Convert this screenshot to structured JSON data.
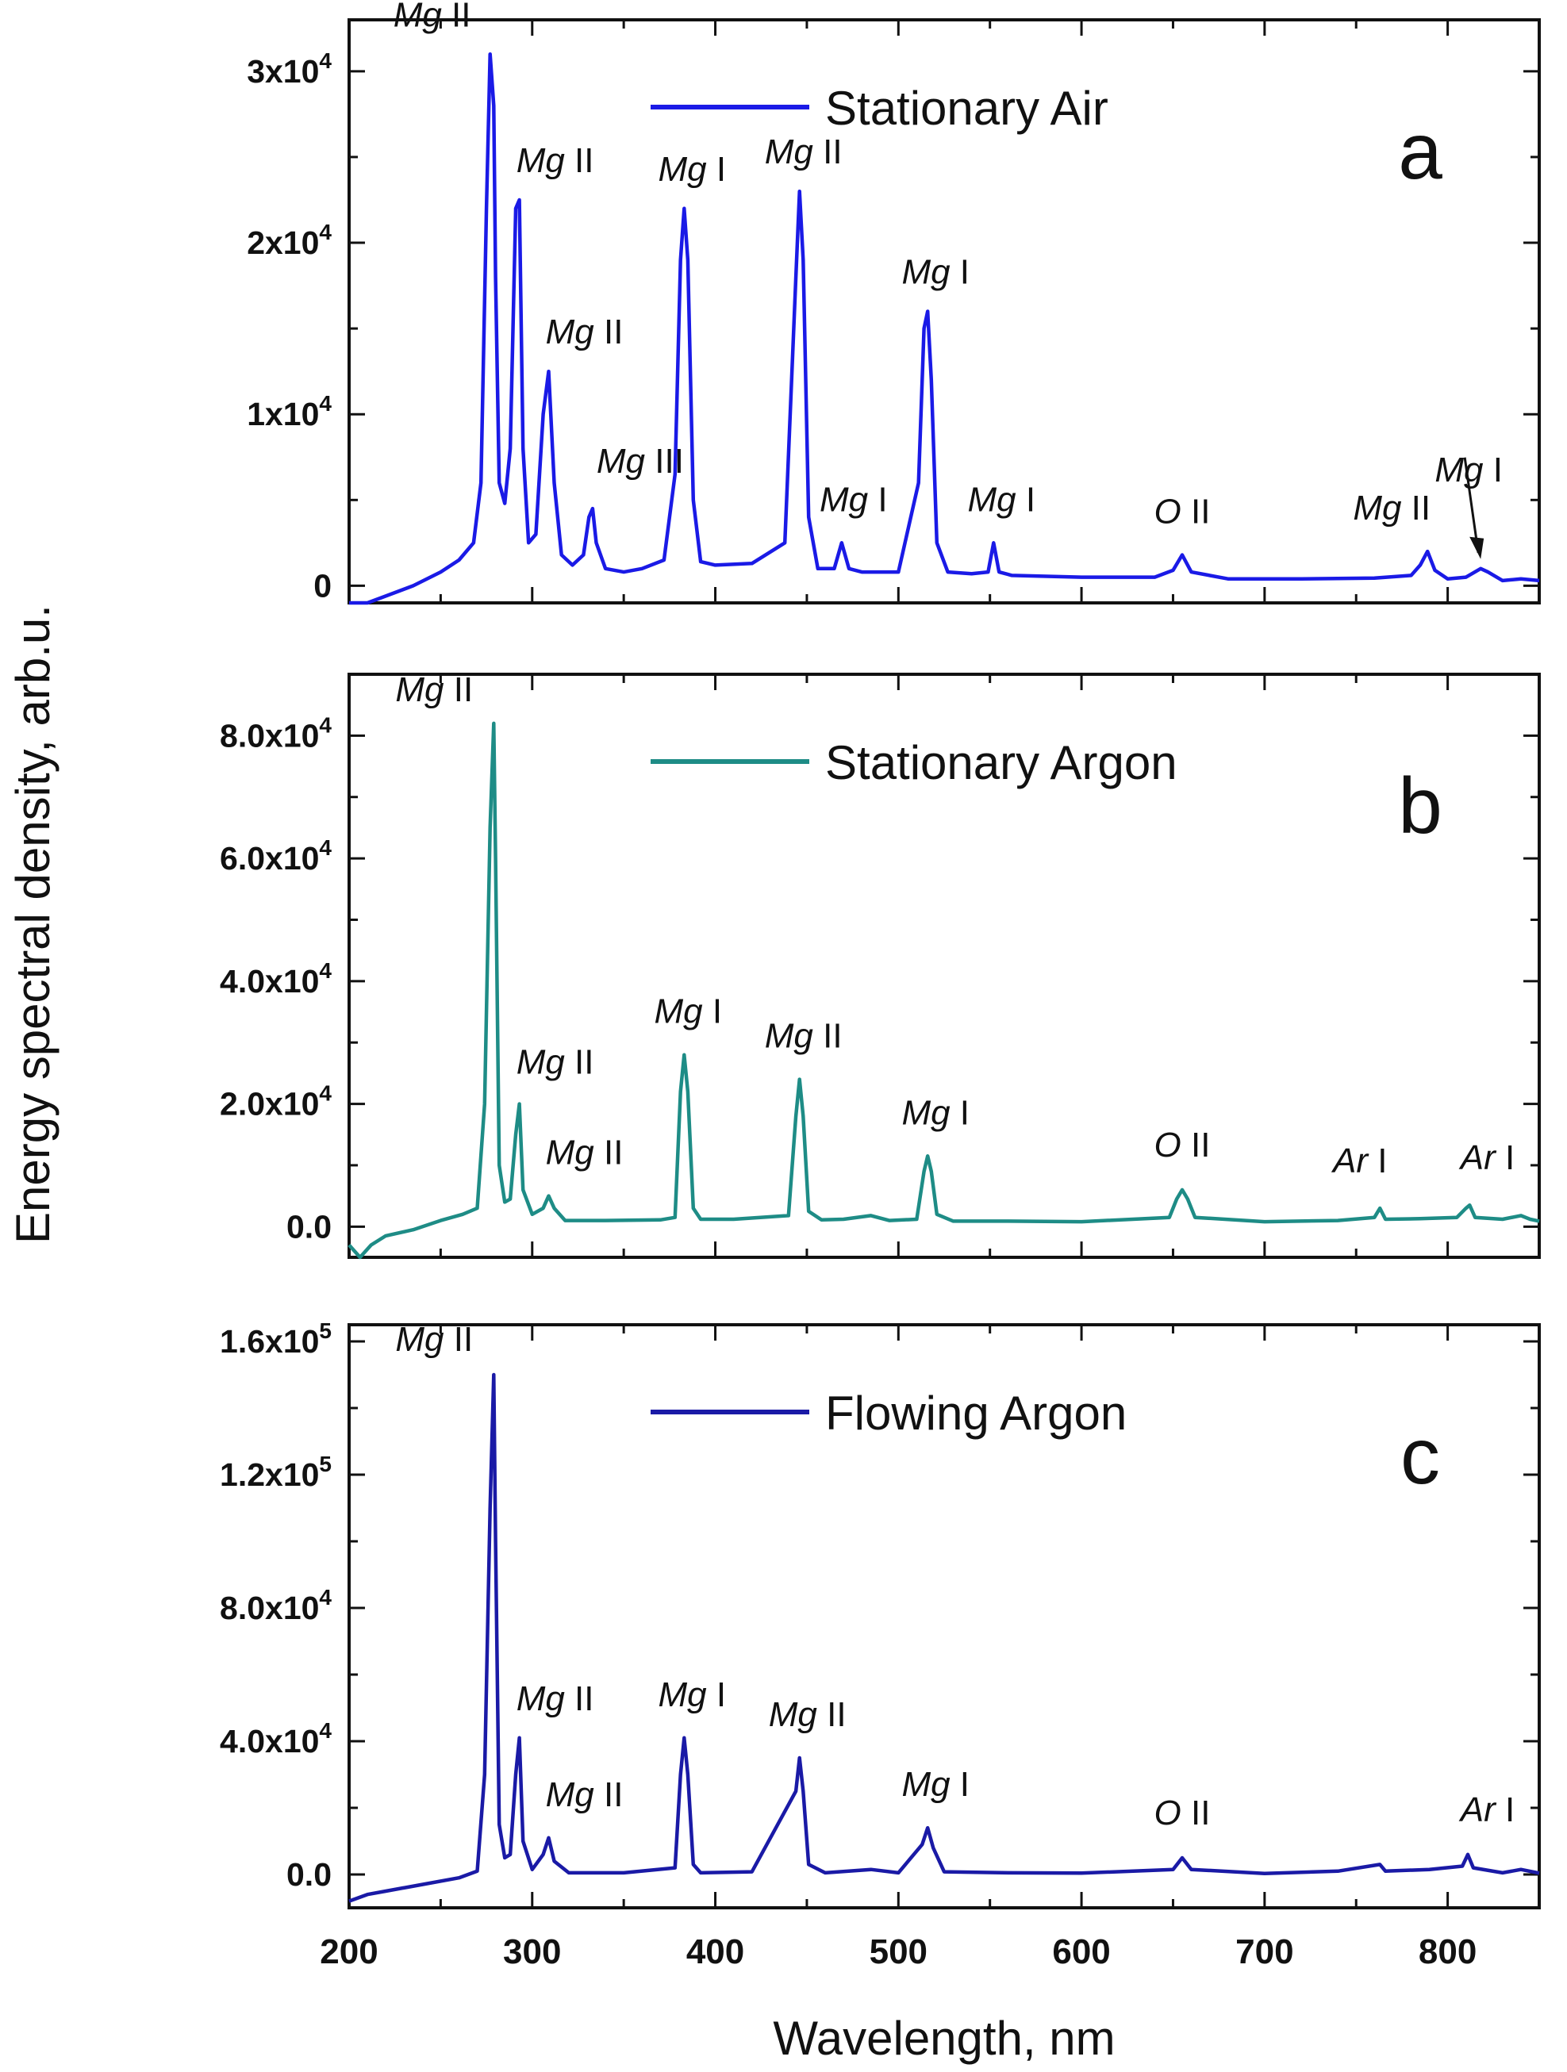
{
  "chart_data": [
    {
      "type": "line",
      "panel_label": "a",
      "series": [
        {
          "name": "Stationary Air",
          "color": "#1a1ae6"
        }
      ],
      "x": [
        200,
        210,
        220,
        235,
        250,
        260,
        268,
        272,
        275,
        277,
        279,
        280,
        282,
        285,
        288,
        291,
        293,
        295,
        298,
        302,
        306,
        309,
        312,
        316,
        322,
        328,
        331,
        333,
        335,
        340,
        350,
        360,
        372,
        378,
        381,
        383,
        385,
        388,
        392,
        400,
        420,
        438,
        444,
        446,
        448,
        451,
        456,
        465,
        469,
        473,
        480,
        500,
        511,
        514,
        516,
        518,
        521,
        527,
        540,
        549,
        552,
        555,
        562,
        600,
        640,
        650,
        655,
        660,
        680,
        720,
        760,
        780,
        785,
        789,
        793,
        800,
        810,
        818,
        822,
        830,
        840,
        850
      ],
      "values": [
        -1000,
        -1000,
        -600,
        0,
        800,
        1500,
        2500,
        6000,
        22000,
        31000,
        28000,
        18000,
        6000,
        4800,
        8000,
        22000,
        22500,
        8000,
        2500,
        3000,
        10000,
        12500,
        6000,
        1800,
        1200,
        1800,
        4000,
        4500,
        2500,
        1000,
        800,
        1000,
        1500,
        6500,
        19000,
        22000,
        19000,
        5000,
        1400,
        1200,
        1300,
        2500,
        18000,
        23000,
        19000,
        4000,
        1000,
        1000,
        2500,
        1000,
        800,
        800,
        6000,
        15000,
        16000,
        12000,
        2500,
        800,
        700,
        800,
        2500,
        800,
        600,
        500,
        500,
        900,
        1800,
        800,
        400,
        400,
        450,
        600,
        1200,
        2000,
        900,
        400,
        500,
        1000,
        800,
        300,
        400,
        300
      ],
      "xlim": [
        200,
        850
      ],
      "ylim": [
        -1000,
        33000
      ],
      "yticks": [
        0,
        10000,
        20000,
        30000
      ],
      "ytick_labels": [
        "0",
        "1x10",
        "2x10",
        "3x10"
      ],
      "ytick_exponents": [
        "",
        "4",
        "4",
        "4"
      ],
      "annotations": [
        {
          "italic": "Mg",
          "normal": " II",
          "x": 280,
          "y": 31000
        },
        {
          "italic": "Mg",
          "normal": " II",
          "x": 293,
          "y": 22500
        },
        {
          "italic": "Mg",
          "normal": " II",
          "x": 309,
          "y": 12500
        },
        {
          "italic": "Mg",
          "normal": " III",
          "x": 333,
          "y": 4500
        },
        {
          "italic": "Mg",
          "normal": " I",
          "x": 383,
          "y": 22000
        },
        {
          "italic": "Mg",
          "normal": " II",
          "x": 446,
          "y": 23000
        },
        {
          "italic": "Mg",
          "normal": " I",
          "x": 469,
          "y": 2500
        },
        {
          "italic": "Mg",
          "normal": " I",
          "x": 516,
          "y": 16000
        },
        {
          "italic": "Mg",
          "normal": " I",
          "x": 552,
          "y": 2500
        },
        {
          "italic": "O",
          "normal": " II",
          "x": 655,
          "y": 1800
        },
        {
          "italic": "Mg",
          "normal": " II",
          "x": 789,
          "y": 2000
        },
        {
          "italic": "Mg",
          "normal": " I",
          "x": 818,
          "y": 1000
        }
      ]
    },
    {
      "type": "line",
      "panel_label": "b",
      "series": [
        {
          "name": "Stationary Argon",
          "color": "#1e8c86"
        }
      ],
      "x": [
        200,
        206,
        212,
        220,
        235,
        250,
        262,
        270,
        274,
        277,
        279,
        280,
        282,
        285,
        288,
        291,
        293,
        295,
        300,
        306,
        309,
        312,
        318,
        340,
        370,
        378,
        381,
        383,
        385,
        388,
        392,
        410,
        440,
        444,
        446,
        448,
        451,
        458,
        470,
        485,
        495,
        510,
        514,
        516,
        518,
        521,
        530,
        560,
        600,
        648,
        652,
        655,
        658,
        662,
        700,
        740,
        760,
        763,
        766,
        785,
        805,
        810,
        812,
        815,
        830,
        840,
        845,
        850
      ],
      "values": [
        -3000,
        -5000,
        -3000,
        -1500,
        -500,
        1000,
        2000,
        3000,
        20000,
        65000,
        82000,
        60000,
        10000,
        4000,
        4500,
        15000,
        20000,
        6000,
        2000,
        3000,
        5000,
        3000,
        1000,
        1000,
        1100,
        1500,
        22000,
        28000,
        22000,
        3000,
        1200,
        1200,
        1800,
        18000,
        24000,
        18000,
        2500,
        1100,
        1200,
        1800,
        1000,
        1200,
        9000,
        11500,
        9000,
        2000,
        900,
        900,
        800,
        1500,
        4500,
        6000,
        4500,
        1500,
        800,
        1000,
        1500,
        3000,
        1200,
        1300,
        1500,
        3000,
        3500,
        1500,
        1200,
        1800,
        1200,
        900
      ],
      "xlim": [
        200,
        850
      ],
      "ylim": [
        -5000,
        90000
      ],
      "yticks": [
        0,
        20000,
        40000,
        60000,
        80000
      ],
      "ytick_labels": [
        "0.0",
        "2.0x10",
        "4.0x10",
        "6.0x10",
        "8.0x10"
      ],
      "ytick_exponents": [
        "",
        "4",
        "4",
        "4",
        "4"
      ],
      "annotations": [
        {
          "italic": "Mg",
          "normal": " II",
          "x": 279,
          "y": 82000
        },
        {
          "italic": "Mg",
          "normal": " II",
          "x": 293,
          "y": 20000
        },
        {
          "italic": "Mg",
          "normal": " II",
          "x": 309,
          "y": 5000
        },
        {
          "italic": "Mg",
          "normal": " I",
          "x": 383,
          "y": 28000
        },
        {
          "italic": "Mg",
          "normal": " II",
          "x": 446,
          "y": 24000
        },
        {
          "italic": "Mg",
          "normal": " I",
          "x": 516,
          "y": 11500
        },
        {
          "italic": "O",
          "normal": " II",
          "x": 655,
          "y": 6000
        },
        {
          "italic": "Ar",
          "normal": " I",
          "x": 763,
          "y": 3000
        },
        {
          "italic": "Ar",
          "normal": " I",
          "x": 811,
          "y": 3500
        }
      ]
    },
    {
      "type": "line",
      "panel_label": "c",
      "series": [
        {
          "name": "Flowing Argon",
          "color": "#1a1aa6"
        }
      ],
      "x": [
        200,
        210,
        220,
        240,
        260,
        270,
        274,
        277,
        279,
        280,
        282,
        285,
        288,
        291,
        293,
        295,
        300,
        306,
        309,
        312,
        320,
        350,
        378,
        381,
        383,
        385,
        388,
        392,
        420,
        444,
        446,
        448,
        451,
        460,
        485,
        500,
        513,
        516,
        519,
        525,
        560,
        600,
        650,
        655,
        660,
        700,
        740,
        763,
        766,
        790,
        808,
        811,
        814,
        830,
        840,
        850
      ],
      "values": [
        -8000,
        -6000,
        -5000,
        -3000,
        -1000,
        1000,
        30000,
        110000,
        150000,
        100000,
        15000,
        5000,
        6000,
        30000,
        41000,
        10000,
        1500,
        6000,
        11000,
        4000,
        500,
        500,
        2000,
        30000,
        41000,
        30000,
        3000,
        500,
        800,
        25000,
        35000,
        25000,
        3000,
        500,
        1500,
        500,
        9000,
        14000,
        8000,
        800,
        500,
        400,
        1500,
        5000,
        1500,
        300,
        1000,
        3000,
        1000,
        1500,
        2500,
        6000,
        2000,
        500,
        1500,
        400
      ],
      "xlim": [
        200,
        850
      ],
      "ylim": [
        -10000,
        165000
      ],
      "yticks": [
        0,
        40000,
        80000,
        120000,
        160000
      ],
      "ytick_labels": [
        "0.0",
        "4.0x10",
        "8.0x10",
        "1.2x10",
        "1.6x10"
      ],
      "ytick_exponents": [
        "",
        "4",
        "4",
        "5",
        "5"
      ],
      "annotations": [
        {
          "italic": "Mg",
          "normal": " II",
          "x": 279,
          "y": 150000
        },
        {
          "italic": "Mg",
          "normal": " II",
          "x": 293,
          "y": 41000
        },
        {
          "italic": "Mg",
          "normal": " II",
          "x": 309,
          "y": 11000
        },
        {
          "italic": "Mg",
          "normal": " I",
          "x": 383,
          "y": 41000
        },
        {
          "italic": "Mg",
          "normal": " II",
          "x": 446,
          "y": 35000
        },
        {
          "italic": "Mg",
          "normal": " I",
          "x": 516,
          "y": 14000
        },
        {
          "italic": "O",
          "normal": " II",
          "x": 655,
          "y": 5000
        },
        {
          "italic": "Ar",
          "normal": " I",
          "x": 811,
          "y": 6000
        }
      ]
    }
  ],
  "xaxis": {
    "label": "Wavelength, nm",
    "ticks": [
      200,
      300,
      400,
      500,
      600,
      700,
      800
    ]
  },
  "yaxis": {
    "label": "Energy spectral density, arb.u."
  }
}
